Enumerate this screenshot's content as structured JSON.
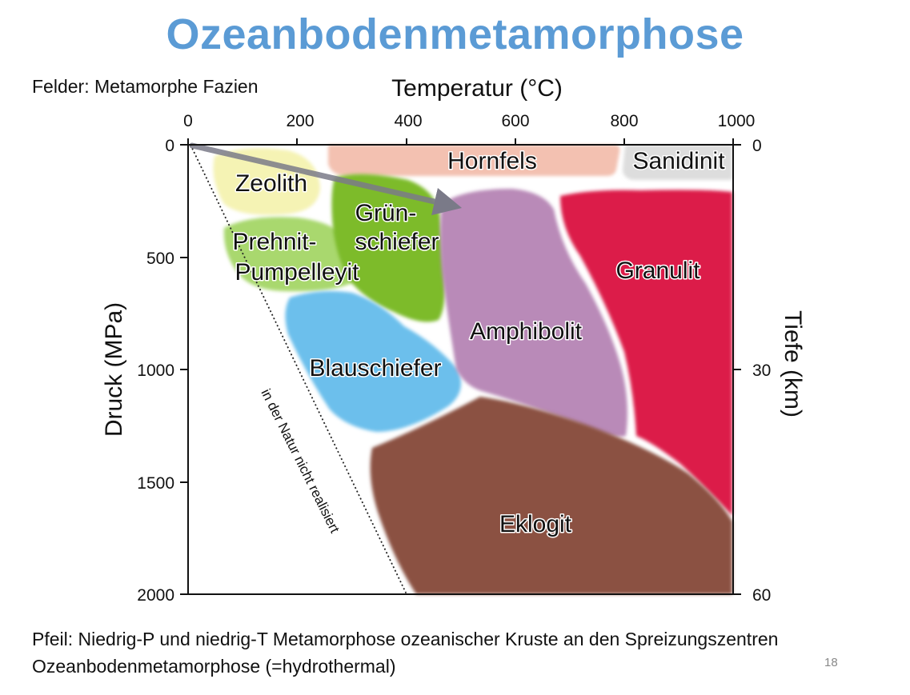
{
  "slide": {
    "title": "Ozeanbodenmetamorphose",
    "legend_note": "Felder: Metamorphe Fazien",
    "caption_line1": "Pfeil: Niedrig-P und niedrig-T Metamorphose ozeanischer Kruste an den Spreizungszentren",
    "caption_line2": "Ozeanbodenmetamorphose (=hydrothermal)",
    "slide_number": "18"
  },
  "diagram": {
    "x_axis_title": "Temperatur (°C)",
    "y_axis_title": "Druck (MPa)",
    "right_axis_title": "Tiefe (km)",
    "x_ticks": [
      "0",
      "200",
      "400",
      "600",
      "800",
      "1000"
    ],
    "y_ticks": [
      "0",
      "500",
      "1000",
      "1500",
      "2000"
    ],
    "depth_ticks": [
      "0",
      "30",
      "60"
    ],
    "unrealized_label": "in der Natur nicht realisiert",
    "facies": {
      "zeolith": {
        "label": "Zeolith",
        "color": "#f5f3b4"
      },
      "prehnit": {
        "label_1": "Prehnit-",
        "label_2": "Pumpelleyit",
        "color": "#a9d86e"
      },
      "gruenschiefer": {
        "label_1": "Grün-",
        "label_2": "schiefer",
        "color": "#7dbb2a"
      },
      "blauschiefer": {
        "label": "Blauschiefer",
        "color": "#6cbfec"
      },
      "amphibolit": {
        "label": "Amphibolit",
        "color": "#b98ab8"
      },
      "granulit": {
        "label": "Granulit",
        "color": "#dc1e4a"
      },
      "eklogit": {
        "label": "Eklogit",
        "color": "#8b5142"
      },
      "hornfels": {
        "label": "Hornfels",
        "color": "#f3c1b1"
      },
      "sanidinit": {
        "label": "Sanidinit",
        "color": "#dddddd"
      }
    },
    "arrow_color": "#7a7a88"
  }
}
